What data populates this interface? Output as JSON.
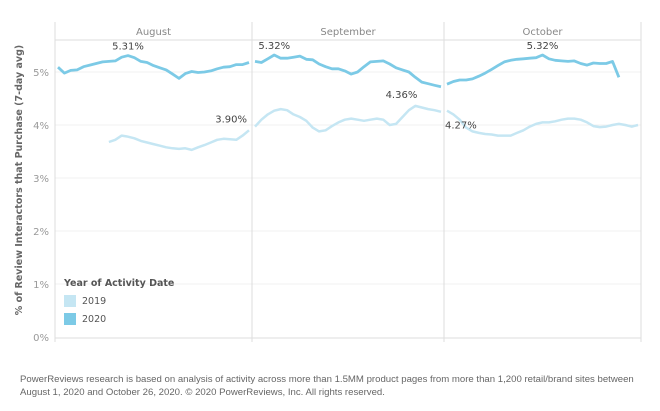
{
  "chart_data": {
    "type": "line",
    "ylabel": "% of Review Interactors that Purchase (7-day avg)",
    "ylim": [
      0,
      5.6
    ],
    "yticks": [
      "0%",
      "1%",
      "2%",
      "3%",
      "4%",
      "5%"
    ],
    "panels": [
      "August",
      "September",
      "October"
    ],
    "grid": true,
    "legend": {
      "title": "Year of Activity Date",
      "position": "bottom-left"
    },
    "series": [
      {
        "name": "2019",
        "color": "#c5e6f3",
        "values": {
          "August": [
            null,
            null,
            null,
            null,
            null,
            null,
            null,
            null,
            3.68,
            3.72,
            3.8,
            3.78,
            3.75,
            3.7,
            3.67,
            3.64,
            3.61,
            3.58,
            3.56,
            3.55,
            3.56,
            3.53,
            3.58,
            3.62,
            3.67,
            3.72,
            3.74,
            3.73,
            3.72,
            3.8,
            3.9
          ],
          "September": [
            3.97,
            4.1,
            4.2,
            4.27,
            4.3,
            4.28,
            4.2,
            4.15,
            4.08,
            3.95,
            3.88,
            3.9,
            3.98,
            4.05,
            4.1,
            4.12,
            4.1,
            4.08,
            4.1,
            4.12,
            4.1,
            4.0,
            4.02,
            4.15,
            4.28,
            4.36,
            4.33,
            4.3,
            4.28,
            4.25
          ],
          "October": [
            4.27,
            4.2,
            4.1,
            3.95,
            3.88,
            3.85,
            3.83,
            3.82,
            3.8,
            3.8,
            3.8,
            3.85,
            3.9,
            3.97,
            4.02,
            4.05,
            4.05,
            4.07,
            4.1,
            4.12,
            4.12,
            4.1,
            4.05,
            3.98,
            3.96,
            3.97,
            4.0,
            4.02,
            4.0,
            3.97,
            4.0
          ]
        }
      },
      {
        "name": "2020",
        "color": "#7ccae6",
        "values": {
          "August": [
            5.09,
            4.98,
            5.03,
            5.04,
            5.1,
            5.13,
            5.16,
            5.19,
            5.2,
            5.21,
            5.28,
            5.31,
            5.27,
            5.2,
            5.18,
            5.12,
            5.08,
            5.04,
            4.96,
            4.88,
            4.97,
            5.01,
            4.99,
            5.0,
            5.02,
            5.06,
            5.09,
            5.1,
            5.14,
            5.14,
            5.18
          ],
          "September": [
            5.2,
            5.18,
            5.25,
            5.32,
            5.26,
            5.26,
            5.28,
            5.3,
            5.24,
            5.23,
            5.15,
            5.1,
            5.06,
            5.06,
            5.02,
            4.96,
            5.0,
            5.1,
            5.19,
            5.2,
            5.21,
            5.15,
            5.08,
            5.04,
            5.0,
            4.9,
            4.81,
            4.78,
            4.75,
            4.72
          ],
          "October": [
            4.77,
            4.82,
            4.85,
            4.85,
            4.87,
            4.92,
            4.98,
            5.05,
            5.12,
            5.19,
            5.22,
            5.24,
            5.25,
            5.26,
            5.27,
            5.32,
            5.25,
            5.22,
            5.21,
            5.2,
            5.21,
            5.16,
            5.13,
            5.17,
            5.16,
            5.16,
            5.2,
            4.9
          ]
        }
      }
    ],
    "annotations": [
      {
        "text": "5.31%",
        "series": "2020",
        "panel": "August",
        "day": 12
      },
      {
        "text": "3.90%",
        "series": "2019",
        "panel": "August",
        "day": 31
      },
      {
        "text": "5.32%",
        "series": "2020",
        "panel": "September",
        "day": 4
      },
      {
        "text": "4.36%",
        "series": "2019",
        "panel": "September",
        "day": 26
      },
      {
        "text": "4.27%",
        "series": "2019",
        "panel": "October",
        "day": 1
      },
      {
        "text": "5.32%",
        "series": "2020",
        "panel": "October",
        "day": 16
      }
    ]
  },
  "footer": "PowerReviews research is based on analysis of activity across more than 1.5MM product pages from more than 1,200 retail/brand sites between August 1,  2020 and October 26, 2020. © 2020 PowerReviews, Inc. All rights reserved."
}
